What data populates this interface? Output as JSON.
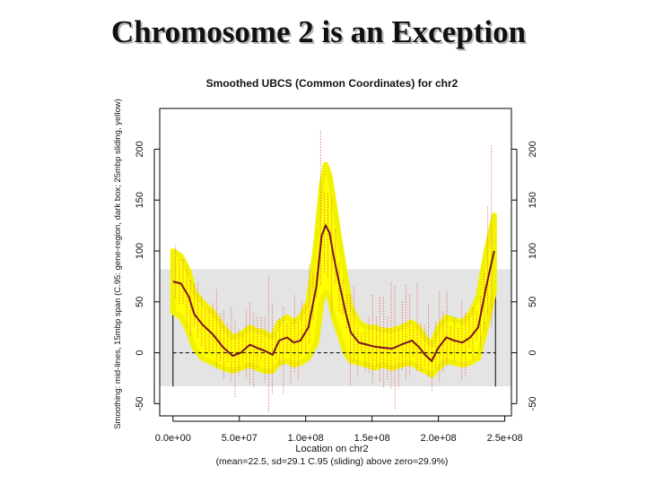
{
  "slide": {
    "title": "Chromosome 2 is an Exception"
  },
  "chart_data": {
    "type": "line",
    "title": "Smoothed UBCS (Common Coordinates) for chr2",
    "xlabel": "Location on chr2",
    "xsublabel": "(mean=22.5, sd=29.1  C.95 (sliding) above zero=29.9%)",
    "ylabel": "Smoothing: mid-lines, 15mbp span (C.95: gene-region, dark box; 25mbp sliding, yellow)",
    "xlim": [
      -10000000.0,
      255000000.0
    ],
    "ylim": [
      -62,
      240
    ],
    "x_ticks": [
      0,
      50000000.0,
      100000000.0,
      150000000.0,
      200000000.0,
      250000000.0
    ],
    "x_tick_labels": [
      "0.0e+00",
      "5.0e+07",
      "1.0e+08",
      "1.5e+08",
      "2.0e+08",
      "2.5e+08"
    ],
    "y_ticks": [
      -50,
      0,
      50,
      100,
      150,
      200
    ],
    "y_tick_labels": [
      "-50",
      "0",
      "50",
      "100",
      "150",
      "200"
    ],
    "grey_box": {
      "y_low": -33,
      "y_high": 82,
      "x_start": 0,
      "x_end": 243000000.0
    },
    "zero_line": 0,
    "series": [
      {
        "role": "smoothed",
        "x": [
          0,
          6000000.0,
          12000000.0,
          16000000.0,
          22000000.0,
          30000000.0,
          38000000.0,
          45000000.0,
          51000000.0,
          58000000.0,
          63000000.0,
          69000000.0,
          75000000.0,
          80000000.0,
          86000000.0,
          91000000.0,
          96000000.0,
          102000000.0,
          108000000.0,
          112000000.0,
          115000000.0,
          118000000.0,
          121000000.0,
          125000000.0,
          130000000.0,
          134000000.0,
          140000000.0,
          146000000.0,
          152000000.0,
          158000000.0,
          165000000.0,
          172000000.0,
          180000000.0,
          185000000.0,
          190000000.0,
          195000000.0,
          200000000.0,
          206000000.0,
          212000000.0,
          218000000.0,
          224000000.0,
          230000000.0,
          236000000.0,
          242000000.0
        ],
        "y": [
          70,
          68,
          55,
          38,
          28,
          18,
          5,
          -3,
          0,
          8,
          5,
          2,
          -2,
          12,
          15,
          10,
          12,
          25,
          65,
          115,
          125,
          118,
          95,
          70,
          40,
          20,
          10,
          8,
          6,
          5,
          4,
          8,
          12,
          6,
          -2,
          -8,
          5,
          15,
          12,
          10,
          15,
          25,
          65,
          100
        ]
      },
      {
        "role": "band",
        "x": [
          0,
          6000000.0,
          12000000.0,
          16000000.0,
          22000000.0,
          30000000.0,
          38000000.0,
          45000000.0,
          51000000.0,
          58000000.0,
          63000000.0,
          69000000.0,
          75000000.0,
          80000000.0,
          86000000.0,
          91000000.0,
          96000000.0,
          102000000.0,
          108000000.0,
          112000000.0,
          115000000.0,
          118000000.0,
          121000000.0,
          125000000.0,
          130000000.0,
          134000000.0,
          140000000.0,
          146000000.0,
          152000000.0,
          158000000.0,
          165000000.0,
          172000000.0,
          180000000.0,
          185000000.0,
          190000000.0,
          195000000.0,
          200000000.0,
          206000000.0,
          212000000.0,
          218000000.0,
          224000000.0,
          230000000.0,
          236000000.0,
          242000000.0
        ],
        "lower": [
          40,
          35,
          20,
          5,
          -5,
          -10,
          -15,
          -18,
          -15,
          -12,
          -15,
          -18,
          -18,
          -10,
          -8,
          -12,
          -10,
          -5,
          10,
          50,
          60,
          55,
          35,
          20,
          0,
          -8,
          -10,
          -12,
          -15,
          -12,
          -15,
          -12,
          -10,
          -15,
          -18,
          -22,
          -15,
          -8,
          -10,
          -12,
          -10,
          -5,
          25,
          60
        ],
        "upper": [
          100,
          95,
          80,
          60,
          50,
          40,
          25,
          15,
          18,
          25,
          22,
          20,
          15,
          30,
          35,
          30,
          35,
          50,
          110,
          165,
          185,
          175,
          150,
          115,
          75,
          45,
          30,
          25,
          25,
          22,
          22,
          25,
          30,
          25,
          15,
          8,
          25,
          35,
          32,
          30,
          38,
          55,
          100,
          135
        ]
      }
    ]
  }
}
